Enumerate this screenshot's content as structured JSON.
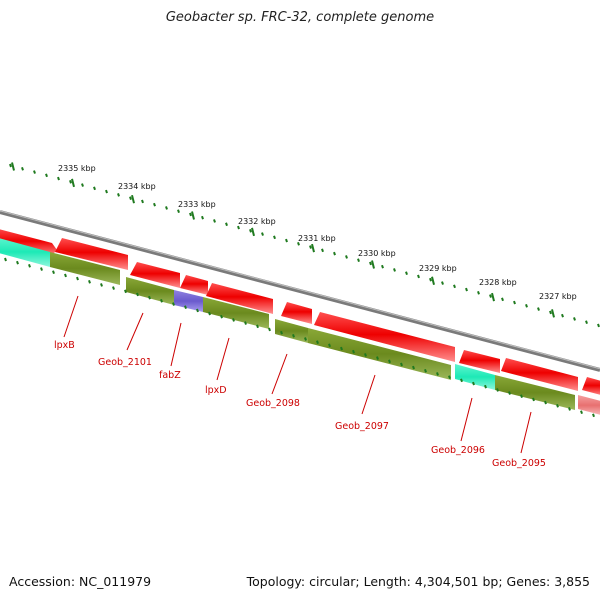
{
  "header": {
    "title": "Geobacter sp. FRC-32, complete genome"
  },
  "footer": {
    "accession": "Accession: NC_011979",
    "summary": "Topology: circular; Length: 4,304,501 bp; Genes: 3,855"
  },
  "colors": {
    "backbone": "#808080",
    "forward_cds": "#ee0000",
    "gene_bar": "#6e8c1e",
    "rna_teal": "#1de9b6",
    "rna_blue": "#6a5acd",
    "faded": "#f08080",
    "tick": "#1f7a1f",
    "label": "#cc0000"
  },
  "ticks": [
    {
      "label": "2335 kbp"
    },
    {
      "label": "2334 kbp"
    },
    {
      "label": "2333 kbp"
    },
    {
      "label": "2332 kbp"
    },
    {
      "label": "2331 kbp"
    },
    {
      "label": "2330 kbp"
    },
    {
      "label": "2329 kbp"
    },
    {
      "label": "2328 kbp"
    },
    {
      "label": "2327 kbp"
    }
  ],
  "gene_labels": [
    {
      "name": "lpxB"
    },
    {
      "name": "Geob_2101"
    },
    {
      "name": "fabZ"
    },
    {
      "name": "lpxD"
    },
    {
      "name": "Geob_2098"
    },
    {
      "name": "Geob_2097"
    },
    {
      "name": "Geob_2096"
    },
    {
      "name": "Geob_2095"
    }
  ]
}
